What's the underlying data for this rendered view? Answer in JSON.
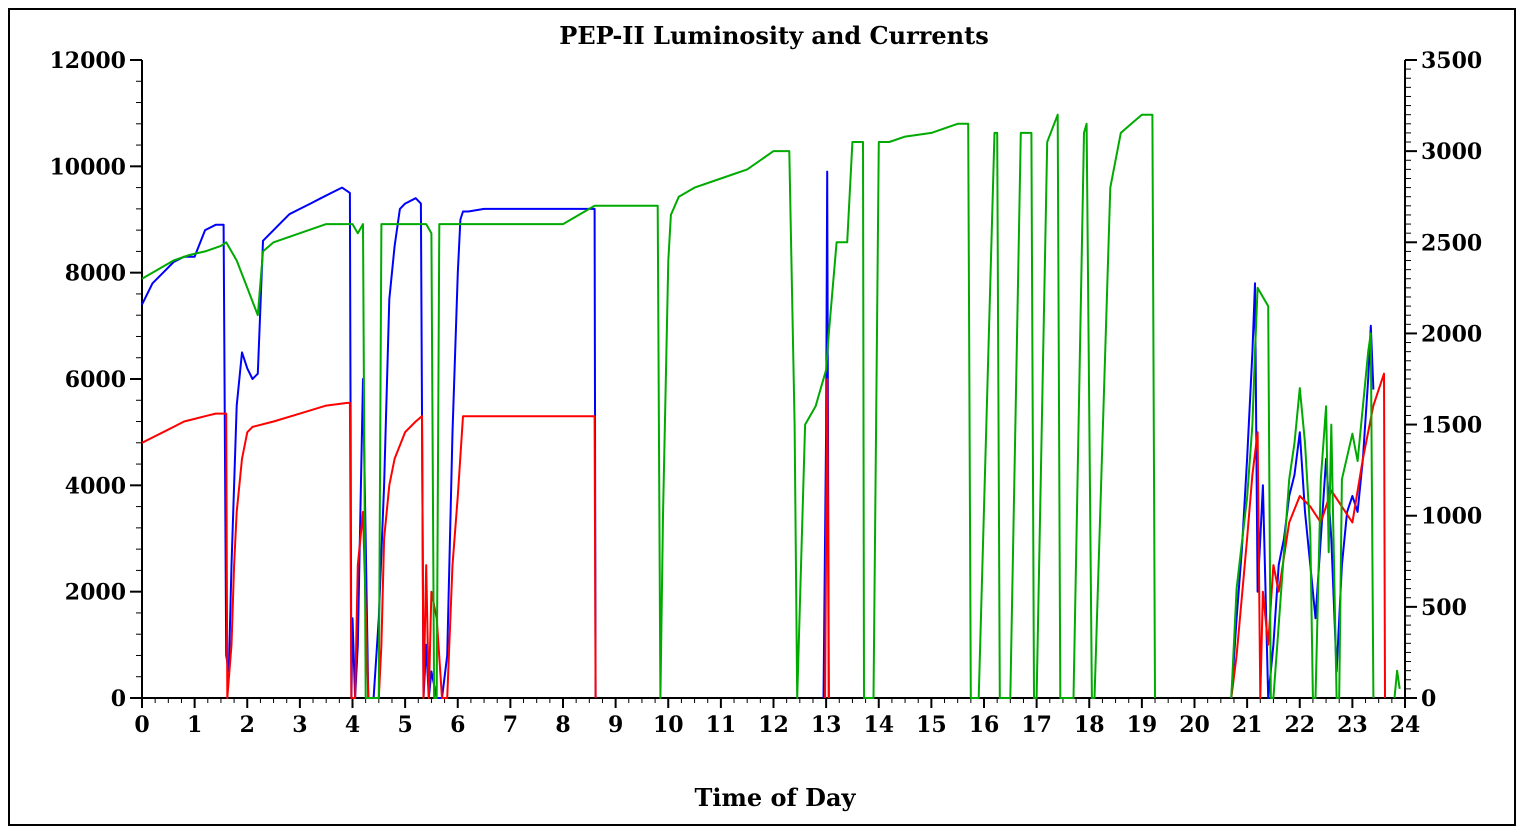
{
  "chart_data": {
    "type": "line",
    "title": "PEP-II Luminosity and Currents",
    "xlabel": "Time of Day",
    "ylabel": "",
    "y2label": "",
    "xlim": [
      0,
      24
    ],
    "ylim": [
      0,
      12000
    ],
    "y2lim": [
      0,
      3500
    ],
    "x_ticks": [
      "0",
      "1",
      "2",
      "3",
      "4",
      "5",
      "6",
      "7",
      "8",
      "9",
      "10",
      "11",
      "12",
      "13",
      "14",
      "15",
      "16",
      "17",
      "18",
      "19",
      "20",
      "21",
      "22",
      "23",
      "24"
    ],
    "y_ticks": [
      "0",
      "2000",
      "4000",
      "6000",
      "8000",
      "10000",
      "12000"
    ],
    "y2_ticks": [
      "0",
      "500",
      "1000",
      "1500",
      "2000",
      "2500",
      "3000",
      "3500"
    ],
    "grid": false,
    "legend": "none",
    "series": [
      {
        "color": "#0000ff",
        "axis": "left",
        "x": [
          0,
          0.2,
          0.4,
          0.6,
          0.8,
          1.0,
          1.2,
          1.4,
          1.55,
          1.6,
          1.65,
          1.7,
          1.8,
          1.9,
          2.0,
          2.1,
          2.2,
          2.3,
          2.4,
          2.6,
          2.8,
          3.0,
          3.2,
          3.4,
          3.6,
          3.8,
          3.95,
          3.98,
          4.0,
          4.05,
          4.1,
          4.2,
          4.3,
          4.4,
          4.5,
          4.6,
          4.7,
          4.8,
          4.9,
          5.0,
          5.2,
          5.3,
          5.35,
          5.4,
          5.45,
          5.5,
          5.6,
          5.7,
          5.8,
          5.9,
          6.0,
          6.05,
          6.1,
          6.2,
          6.5,
          7.0,
          7.5,
          8.0,
          8.6,
          8.62
        ],
        "y": [
          7400,
          7800,
          8000,
          8200,
          8300,
          8300,
          8800,
          8900,
          8900,
          800,
          500,
          2500,
          5500,
          6500,
          6200,
          6000,
          6100,
          8600,
          8700,
          8900,
          9100,
          9200,
          9300,
          9400,
          9500,
          9600,
          9500,
          0,
          1500,
          0,
          1000,
          6000,
          0,
          0,
          1500,
          4000,
          7500,
          8500,
          9200,
          9300,
          9400,
          9300,
          0,
          1000,
          0,
          500,
          0,
          0,
          800,
          5000,
          8000,
          9000,
          9150,
          9150,
          9200,
          9200,
          9200,
          9200,
          9200,
          0
        ]
      },
      {
        "color": "#0000ff",
        "axis": "left",
        "x": [
          12.95,
          13.0,
          13.02,
          13.05
        ],
        "y": [
          0,
          5000,
          9900,
          0
        ]
      },
      {
        "color": "#0000ff",
        "axis": "left",
        "x": [
          20.7,
          20.8,
          20.9,
          21.0,
          21.1,
          21.15,
          21.2,
          21.25,
          21.3,
          21.4,
          21.5,
          21.6,
          21.7,
          21.8,
          21.9,
          22.0,
          22.1,
          22.2,
          22.3,
          22.4,
          22.5,
          22.6,
          22.7,
          22.8,
          22.9,
          23.0,
          23.1,
          23.2,
          23.3,
          23.35,
          23.4
        ],
        "y": [
          0,
          1500,
          2800,
          4500,
          6500,
          7800,
          2000,
          3000,
          4000,
          0,
          1000,
          2500,
          3000,
          3800,
          4200,
          5000,
          3500,
          2500,
          1500,
          3000,
          4500,
          3000,
          500,
          2500,
          3500,
          3800,
          3500,
          4500,
          6000,
          7000,
          5800
        ]
      },
      {
        "color": "#ff0000",
        "axis": "left",
        "x": [
          0,
          0.2,
          0.4,
          0.6,
          0.8,
          1.0,
          1.2,
          1.4,
          1.6,
          1.62,
          1.7,
          1.75,
          1.8,
          1.9,
          2.0,
          2.1,
          2.5,
          3.0,
          3.5,
          3.9,
          3.95,
          3.98,
          4.05,
          4.1,
          4.2,
          4.3,
          4.4,
          4.5,
          4.55,
          4.6,
          4.7,
          4.8,
          5.0,
          5.2,
          5.32,
          5.35,
          5.4,
          5.45,
          5.5,
          5.6,
          5.7,
          5.8,
          5.9,
          6.0,
          6.1,
          6.5,
          7.0,
          7.5,
          8.0,
          8.6,
          8.62
        ],
        "y": [
          4800,
          4900,
          5000,
          5100,
          5200,
          5250,
          5300,
          5350,
          5350,
          0,
          1000,
          2500,
          3500,
          4500,
          5000,
          5100,
          5200,
          5350,
          5500,
          5550,
          5550,
          0,
          0,
          2500,
          3500,
          0,
          0,
          0,
          1000,
          3000,
          4000,
          4500,
          5000,
          5200,
          5300,
          0,
          2500,
          0,
          2000,
          1500,
          0,
          0,
          2500,
          3800,
          5300,
          5300,
          5300,
          5300,
          5300,
          5300,
          0
        ]
      },
      {
        "color": "#ff0000",
        "axis": "left",
        "x": [
          12.98,
          13.0,
          13.02,
          13.05
        ],
        "y": [
          0,
          3000,
          6000,
          0
        ]
      },
      {
        "color": "#ff0000",
        "axis": "left",
        "x": [
          20.7,
          20.8,
          21.0,
          21.1,
          21.2,
          21.25,
          21.3,
          21.4,
          21.5,
          21.6,
          21.8,
          22.0,
          22.2,
          22.4,
          22.6,
          22.8,
          23.0,
          23.2,
          23.4,
          23.5,
          23.6,
          23.62
        ],
        "y": [
          0,
          800,
          3000,
          4200,
          5000,
          0,
          2000,
          1000,
          2500,
          2000,
          3300,
          3800,
          3600,
          3300,
          3900,
          3600,
          3300,
          4500,
          5500,
          5800,
          6100,
          0
        ]
      },
      {
        "color": "#00aa00",
        "axis": "right",
        "x": [
          0,
          0.3,
          0.6,
          0.9,
          1.2,
          1.5,
          1.6,
          1.8,
          2.0,
          2.2,
          2.3,
          2.5,
          3.0,
          3.5,
          3.8,
          4.0,
          4.1,
          4.2,
          4.25,
          4.3,
          4.35,
          4.5,
          4.55,
          4.6,
          4.7,
          4.8,
          5.0,
          5.3,
          5.4,
          5.5,
          5.55,
          5.6,
          5.65,
          5.8,
          5.9,
          6.0,
          6.1,
          6.5,
          7.0,
          7.5,
          8.0,
          8.6,
          9.0,
          9.5,
          9.8,
          9.85,
          9.9,
          10.0,
          10.05,
          10.2,
          10.5,
          11.0,
          11.5,
          12.0,
          12.3,
          12.4,
          12.45,
          12.6,
          12.8,
          13.0,
          13.05,
          13.2,
          13.4,
          13.5,
          13.7,
          13.72,
          13.9,
          13.95,
          14.0,
          14.2,
          14.5,
          15.0,
          15.5,
          15.7,
          15.75,
          15.9,
          16.2,
          16.25,
          16.3,
          16.45,
          16.5,
          16.7,
          16.9,
          16.95,
          17.0,
          17.2,
          17.4,
          17.45,
          17.5,
          17.7,
          17.9,
          17.95,
          18.05,
          18.1,
          18.4,
          18.6,
          18.8,
          19.0,
          19.2,
          19.25
        ],
        "y": [
          2300,
          2350,
          2400,
          2430,
          2450,
          2480,
          2500,
          2400,
          2250,
          2100,
          2450,
          2500,
          2550,
          2600,
          2600,
          2600,
          2550,
          2600,
          0,
          0,
          0,
          0,
          2600,
          2600,
          2600,
          2600,
          2600,
          2600,
          2600,
          2550,
          0,
          0,
          2600,
          2600,
          2600,
          2600,
          2600,
          2600,
          2600,
          2600,
          2600,
          2700,
          2700,
          2700,
          2700,
          0,
          1000,
          2400,
          2650,
          2750,
          2800,
          2850,
          2900,
          3000,
          3000,
          1500,
          0,
          1500,
          1600,
          1800,
          2000,
          2500,
          2500,
          3050,
          3050,
          0,
          0,
          1500,
          3050,
          3050,
          3080,
          3100,
          3150,
          3150,
          0,
          0,
          3100,
          3100,
          0,
          0,
          0,
          3100,
          3100,
          0,
          0,
          3050,
          3200,
          0,
          0,
          0,
          3100,
          3150,
          0,
          0,
          2800,
          3100,
          3150,
          3200,
          3200,
          0
        ]
      },
      {
        "color": "#00aa00",
        "axis": "right",
        "x": [
          20.7,
          20.8,
          21.0,
          21.1,
          21.15,
          21.2,
          21.3,
          21.4,
          21.45,
          21.5,
          21.6,
          21.8,
          21.9,
          22.0,
          22.1,
          22.2,
          22.25,
          22.3,
          22.4,
          22.5,
          22.55,
          22.6,
          22.7,
          22.75,
          22.8,
          23.0,
          23.1,
          23.2,
          23.3,
          23.35,
          23.4
        ],
        "y": [
          0,
          600,
          1100,
          1500,
          1900,
          2250,
          2200,
          2150,
          0,
          0,
          400,
          1200,
          1400,
          1700,
          1400,
          900,
          0,
          0,
          1200,
          1600,
          800,
          1500,
          0,
          0,
          1200,
          1450,
          1300,
          1600,
          1900,
          2000,
          0
        ]
      },
      {
        "color": "#00aa00",
        "axis": "right",
        "x": [
          23.8,
          23.85,
          23.9
        ],
        "y": [
          0,
          150,
          50
        ]
      }
    ]
  }
}
